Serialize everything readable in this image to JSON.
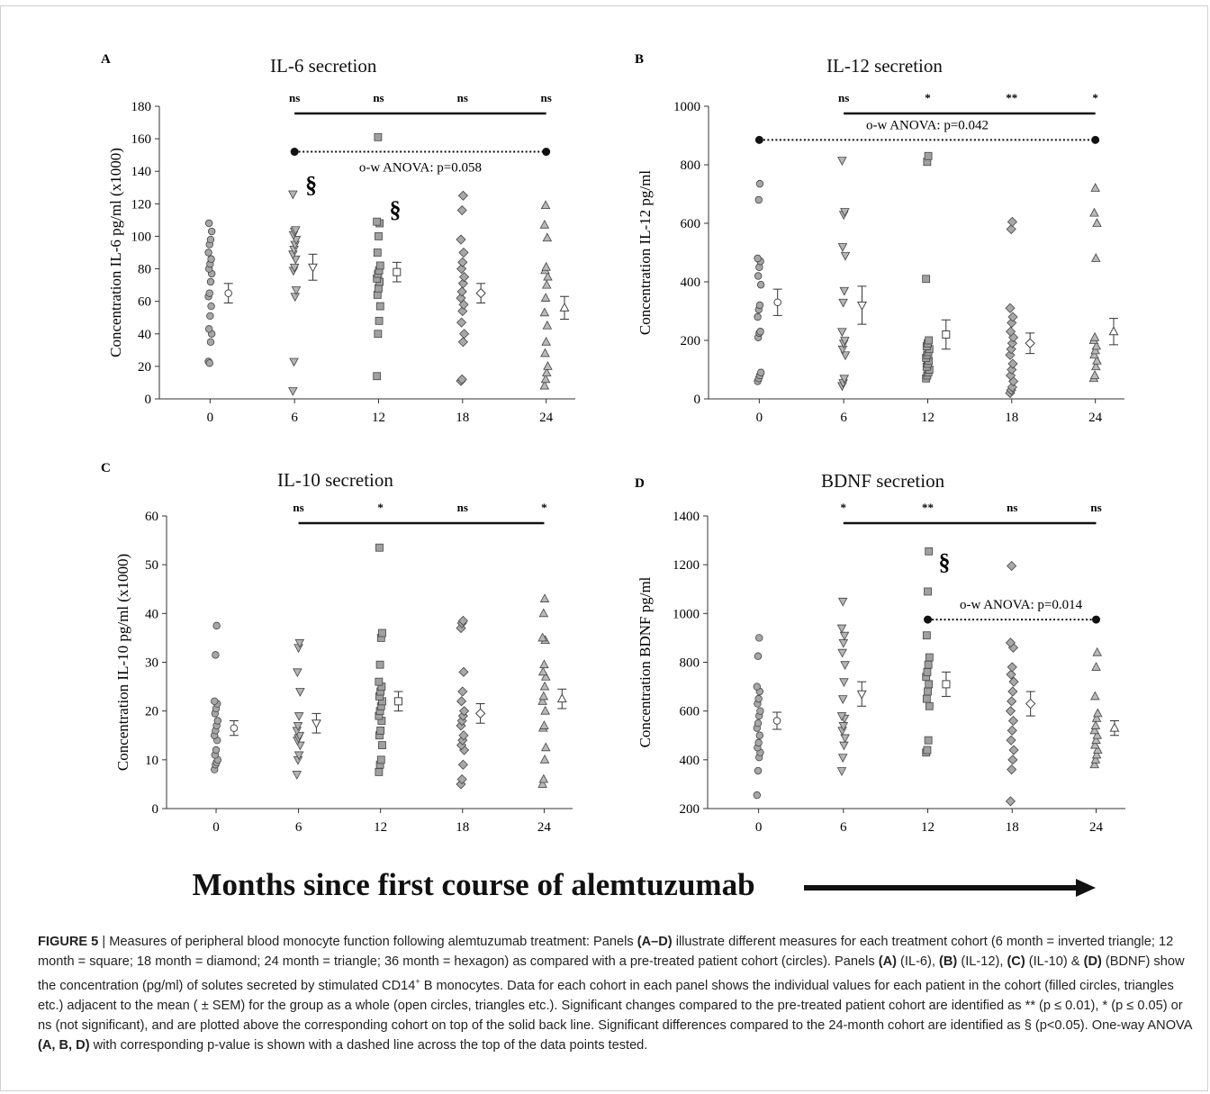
{
  "x_axis_title": "Months since first course of alemtuzumab",
  "caption": {
    "parts": [
      {
        "t": "FIGURE 5",
        "b": true
      },
      {
        "t": " | Measures of peripheral blood monocyte function following alemtuzumab treatment: Panels ",
        "b": false
      },
      {
        "t": "(A–D)",
        "b": true
      },
      {
        "t": " illustrate different measures for each treatment cohort (6 month = inverted triangle; 12 month = square; 18 month = diamond; 24 month = triangle; 36 month = hexagon) as compared with a pre-treated patient cohort (circles). Panels ",
        "b": false
      },
      {
        "t": "(A)",
        "b": true
      },
      {
        "t": " (IL-6), ",
        "b": false
      },
      {
        "t": "(B)",
        "b": true
      },
      {
        "t": " (IL-12), ",
        "b": false
      },
      {
        "t": "(C)",
        "b": true
      },
      {
        "t": " (IL-10) & ",
        "b": false
      },
      {
        "t": "(D)",
        "b": true
      },
      {
        "t": " (BDNF) show the concentration (pg/ml) of solutes secreted by stimulated CD14",
        "b": false
      },
      {
        "t": "+",
        "b": false,
        "sup": true
      },
      {
        "t": " B monocytes. Data for each cohort in each panel shows the individual values for each patient in the cohort (filled circles, triangles etc.) adjacent to the mean ( ± SEM) for the group as a whole (open circles, triangles etc.). Significant changes compared to the pre-treated patient cohort are identified as ** (p ≤ 0.01), * (p ≤ 0.05) or ns (not significant), and are plotted above the corresponding cohort on top of the solid back line. Significant differences compared to the 24-month cohort are identified as § (p<0.05). One-way ANOVA ",
        "b": false
      },
      {
        "t": "(A, B, D)",
        "b": true
      },
      {
        "t": " with corresponding p-value is shown with a dashed line across the top of the data points tested.",
        "b": false
      }
    ]
  },
  "chart_data": [
    {
      "panel": "A",
      "title": "IL-6 secretion",
      "type": "scatter",
      "ylabel": "Concentration IL-6 pg/ml (x1000)",
      "ylim": [
        0,
        180
      ],
      "yticks": [
        0,
        20,
        40,
        60,
        80,
        100,
        120,
        140,
        160,
        180
      ],
      "xticks": [
        "0",
        "6",
        "12",
        "18",
        "24"
      ],
      "groups": [
        {
          "x": "0",
          "marker": "circle",
          "values": [
            23,
            22,
            35,
            40,
            43,
            51,
            57,
            63,
            65,
            72,
            77,
            80,
            83,
            86,
            90,
            95,
            98,
            103,
            108
          ],
          "mean": 65,
          "sem": 6
        },
        {
          "x": "6",
          "marker": "inverted-triangle",
          "values": [
            5,
            23,
            63,
            67,
            79,
            81,
            86,
            89,
            92,
            95,
            98,
            101,
            103,
            104,
            126
          ],
          "mean": 81,
          "sem": 8
        },
        {
          "x": "12",
          "marker": "square",
          "values": [
            14,
            40,
            48,
            57,
            64,
            68,
            72,
            74,
            77,
            79,
            82,
            90,
            100,
            108,
            109,
            161
          ],
          "mean": 78,
          "sem": 6
        },
        {
          "x": "18",
          "marker": "diamond",
          "values": [
            11,
            12,
            35,
            40,
            47,
            54,
            58,
            62,
            66,
            71,
            75,
            80,
            84,
            90,
            98,
            116,
            125
          ],
          "mean": 65,
          "sem": 6
        },
        {
          "x": "24",
          "marker": "triangle",
          "values": [
            8,
            12,
            16,
            20,
            28,
            35,
            45,
            53,
            62,
            70,
            75,
            79,
            81,
            99,
            107,
            119
          ],
          "mean": 56,
          "sem": 7
        }
      ],
      "significance": {
        "labels": [
          "ns",
          "ns",
          "ns",
          "ns"
        ],
        "line": {
          "from": "6",
          "to": "24",
          "y": 175
        }
      },
      "anova": {
        "label": "o-w ANOVA: p=0.058",
        "from": "6",
        "to": "24",
        "y": 152
      },
      "dagger": [
        {
          "x": "6",
          "y": 127,
          "label": "§"
        },
        {
          "x": "12",
          "y": 112,
          "label": "§"
        }
      ]
    },
    {
      "panel": "B",
      "title": "IL-12 secretion",
      "type": "scatter",
      "ylabel": "Concentration IL-12 pg/ml",
      "ylim": [
        0,
        1000
      ],
      "yticks": [
        0,
        200,
        400,
        600,
        800,
        1000
      ],
      "xticks": [
        "0",
        "6",
        "12",
        "18",
        "24"
      ],
      "groups": [
        {
          "x": "0",
          "marker": "circle",
          "values": [
            60,
            70,
            80,
            90,
            210,
            225,
            230,
            280,
            305,
            320,
            390,
            420,
            450,
            470,
            480,
            680,
            735
          ],
          "mean": 330,
          "sem": 45
        },
        {
          "x": "6",
          "marker": "inverted-triangle",
          "values": [
            45,
            55,
            70,
            150,
            170,
            190,
            200,
            230,
            330,
            370,
            490,
            520,
            630,
            640,
            815
          ],
          "mean": 320,
          "sem": 65
        },
        {
          "x": "12",
          "marker": "square",
          "values": [
            70,
            80,
            90,
            100,
            110,
            120,
            130,
            140,
            150,
            160,
            170,
            180,
            190,
            200,
            410,
            810,
            830
          ],
          "mean": 220,
          "sem": 50
        },
        {
          "x": "18",
          "marker": "diamond",
          "values": [
            20,
            30,
            40,
            60,
            80,
            100,
            120,
            150,
            170,
            190,
            210,
            230,
            260,
            280,
            310,
            580,
            605
          ],
          "mean": 190,
          "sem": 35
        },
        {
          "x": "24",
          "marker": "triangle",
          "values": [
            70,
            80,
            110,
            130,
            150,
            165,
            180,
            200,
            210,
            480,
            600,
            635,
            720
          ],
          "mean": 230,
          "sem": 45
        }
      ],
      "significance": {
        "labels": [
          "ns",
          "*",
          "**",
          "*"
        ],
        "line": {
          "from": "6",
          "to": "24",
          "y": 1000
        }
      },
      "anova": {
        "label": "o-w ANOVA: p=0.042",
        "from": "0",
        "to": "24",
        "y": 885
      },
      "dagger": []
    },
    {
      "panel": "C",
      "title": "IL-10 secretion",
      "type": "scatter",
      "ylabel": "Concentration IL-10 pg/ml (x1000)",
      "ylim": [
        0,
        60
      ],
      "yticks": [
        0,
        10,
        20,
        30,
        40,
        50,
        60
      ],
      "xticks": [
        "0",
        "6",
        "12",
        "18",
        "24"
      ],
      "groups": [
        {
          "x": "0",
          "marker": "circle",
          "values": [
            8,
            9,
            9.5,
            10,
            11,
            12,
            14,
            15,
            16,
            17,
            18,
            19.5,
            20.5,
            21.5,
            22,
            31.5,
            37.5
          ],
          "mean": 16.5,
          "sem": 1.5
        },
        {
          "x": "6",
          "marker": "inverted-triangle",
          "values": [
            7,
            10,
            11,
            13,
            14,
            14.5,
            15,
            16,
            17,
            19,
            24,
            28,
            33,
            34
          ],
          "mean": 17.5,
          "sem": 2
        },
        {
          "x": "12",
          "marker": "square",
          "values": [
            7.5,
            9,
            10,
            13,
            15,
            16,
            18,
            19,
            20,
            21,
            22,
            23,
            24,
            25,
            26,
            29.5,
            35,
            36,
            53.5
          ],
          "mean": 22,
          "sem": 2
        },
        {
          "x": "18",
          "marker": "diamond",
          "values": [
            5,
            6,
            9,
            12,
            13,
            14,
            15,
            17,
            18,
            19,
            20,
            22,
            24,
            28,
            37,
            38,
            38.5
          ],
          "mean": 19.5,
          "sem": 2
        },
        {
          "x": "24",
          "marker": "triangle",
          "values": [
            5,
            6,
            10,
            12.5,
            16.5,
            17,
            20,
            22,
            23,
            25,
            27,
            28,
            29.5,
            34.5,
            35,
            40,
            43
          ],
          "mean": 22.5,
          "sem": 2
        }
      ],
      "significance": {
        "labels": [
          "ns",
          "*",
          "ns",
          "*"
        ],
        "line": {
          "from": "6",
          "to": "24",
          "y": 57
        }
      },
      "anova": null,
      "dagger": []
    },
    {
      "panel": "D",
      "title": "BDNF secretion",
      "type": "scatter",
      "ylabel": "Concentration BDNF pg/ml",
      "ylim": [
        200,
        1400
      ],
      "yticks": [
        200,
        400,
        600,
        800,
        1000,
        1200,
        1400
      ],
      "xticks": [
        "0",
        "6",
        "12",
        "18",
        "24"
      ],
      "groups": [
        {
          "x": "0",
          "marker": "circle",
          "values": [
            255,
            355,
            410,
            430,
            450,
            470,
            500,
            530,
            550,
            580,
            600,
            630,
            650,
            680,
            700,
            825,
            900
          ],
          "mean": 560,
          "sem": 35
        },
        {
          "x": "6",
          "marker": "inverted-triangle",
          "values": [
            355,
            410,
            460,
            490,
            520,
            540,
            570,
            580,
            650,
            720,
            790,
            840,
            880,
            910,
            940,
            1050
          ],
          "mean": 670,
          "sem": 50
        },
        {
          "x": "12",
          "marker": "square",
          "values": [
            430,
            440,
            480,
            620,
            650,
            680,
            710,
            740,
            760,
            790,
            820,
            910,
            1090,
            1255
          ],
          "mean": 710,
          "sem": 50
        },
        {
          "x": "18",
          "marker": "diamond",
          "values": [
            230,
            360,
            400,
            440,
            480,
            520,
            560,
            600,
            640,
            680,
            720,
            750,
            780,
            860,
            880,
            1195
          ],
          "mean": 630,
          "sem": 50
        },
        {
          "x": "24",
          "marker": "triangle",
          "values": [
            380,
            400,
            420,
            440,
            460,
            480,
            500,
            520,
            540,
            570,
            590,
            660,
            780,
            840
          ],
          "mean": 530,
          "sem": 30
        },
        {
          "x": "12",
          "marker": "none",
          "values": [],
          "mean": null,
          "sem": null
        }
      ],
      "significance": {
        "labels": [
          "*",
          "**",
          "ns",
          "ns"
        ],
        "line": {
          "from": "6",
          "to": "24",
          "y": 1320
        }
      },
      "anova": {
        "label": "o-w ANOVA: p=0.014",
        "from": "12",
        "to": "24",
        "y": 975
      },
      "dagger": [
        {
          "x": "12",
          "y": 1180,
          "label": "§"
        }
      ]
    }
  ]
}
